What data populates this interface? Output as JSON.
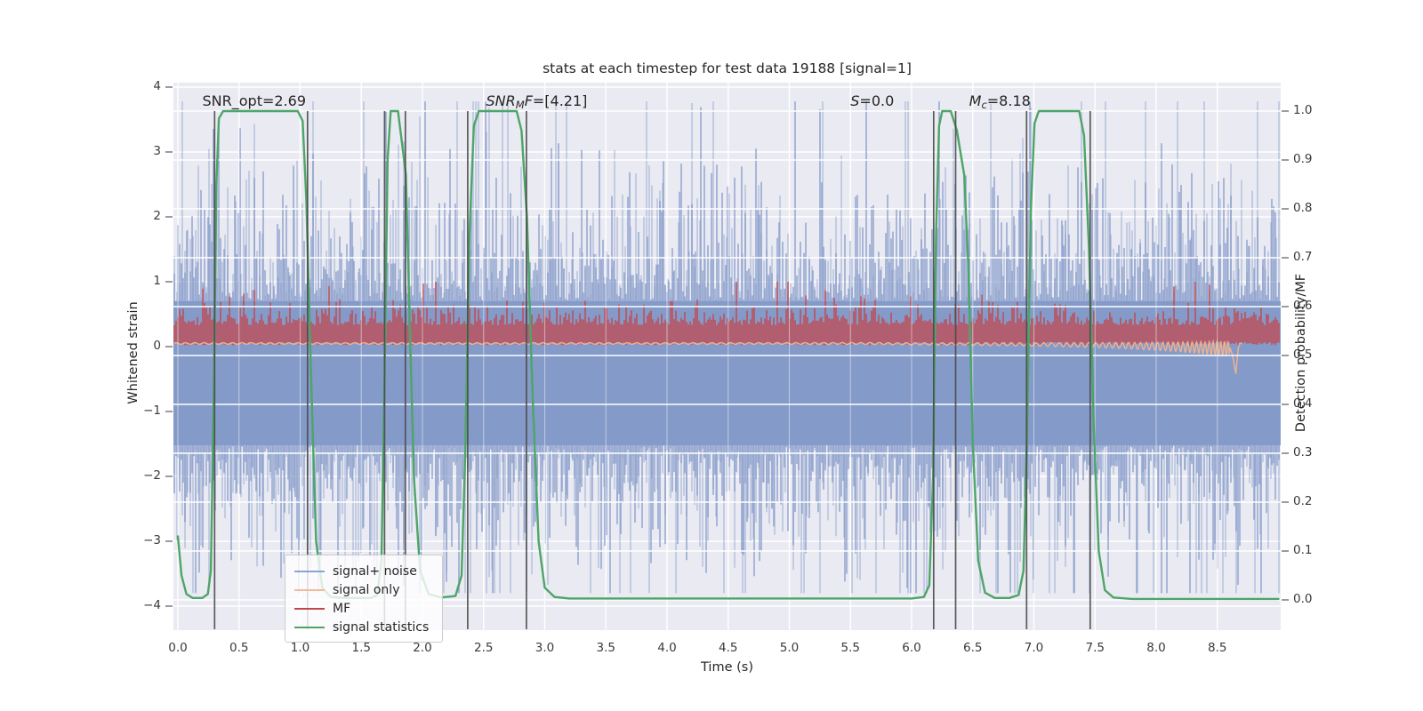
{
  "figure": {
    "title": "stats at each timestep for test data 19188 [signal=1]",
    "background": "#ffffff",
    "axes_background": "#eaeaf2",
    "grid_color": "#ffffff"
  },
  "axes": {
    "x": {
      "label": "Time (s)",
      "tick_labels": [
        "0.0",
        "0.5",
        "1.0",
        "1.5",
        "2.0",
        "2.5",
        "3.0",
        "3.5",
        "4.0",
        "4.5",
        "5.0",
        "5.5",
        "6.0",
        "6.5",
        "7.0",
        "7.5",
        "8.0",
        "8.5"
      ],
      "tick_values": [
        0,
        0.5,
        1,
        1.5,
        2,
        2.5,
        3,
        3.5,
        4,
        4.5,
        5,
        5.5,
        6,
        6.5,
        7,
        7.5,
        8,
        8.5
      ]
    },
    "y_left": {
      "label": "Whitened strain",
      "tick_labels": [
        "4",
        "3",
        "2",
        "1",
        "0",
        "−1",
        "−2",
        "−3",
        "−4"
      ],
      "tick_values": [
        4,
        3,
        2,
        1,
        0,
        -1,
        -2,
        -3,
        -4
      ]
    },
    "y_right": {
      "label": "Detection probability/MF",
      "tick_labels": [
        "1.0",
        "0.9",
        "0.8",
        "0.7",
        "0.6",
        "0.5",
        "0.4",
        "0.3",
        "0.2",
        "0.1",
        "0.0"
      ],
      "tick_values": [
        1.0,
        0.9,
        0.8,
        0.7,
        0.6,
        0.5,
        0.4,
        0.3,
        0.2,
        0.1,
        0.0
      ]
    }
  },
  "legend": {
    "position": "lower left",
    "items": [
      {
        "label": "signal+ noise",
        "color": "#8ba2d2"
      },
      {
        "label": "signal only",
        "color": "#f2bb9b"
      },
      {
        "label": "MF",
        "color": "#c2474d"
      },
      {
        "label": "signal statistics",
        "color": "#51a468"
      }
    ]
  },
  "annotations": [
    {
      "id": "snr-opt",
      "x_time": 0.2,
      "segments": [
        {
          "t": "SNR_opt=2.69"
        }
      ]
    },
    {
      "id": "snr-mf",
      "x_time": 2.52,
      "segments": [
        {
          "t": "SNR",
          "i": true
        },
        {
          "t": "M",
          "i": true,
          "sub": true
        },
        {
          "t": "F",
          "i": true
        },
        {
          "t": "=[4.21]"
        }
      ]
    },
    {
      "id": "s-stat",
      "x_time": 5.5,
      "segments": [
        {
          "t": "S",
          "i": true
        },
        {
          "t": "=0.0"
        }
      ]
    },
    {
      "id": "m-c",
      "x_time": 6.47,
      "segments": [
        {
          "t": "M",
          "i": true
        },
        {
          "t": "c",
          "i": true,
          "sub": true
        },
        {
          "t": "=8.18"
        }
      ]
    }
  ],
  "chart_data": {
    "type": "line",
    "title": "stats at each timestep for test data 19188 [signal=1]",
    "xlabel": "Time (s)",
    "ylabel_left": "Whitened strain",
    "ylabel_right": "Detection probability/MF",
    "xlim": [
      -0.04,
      9.01
    ],
    "ylim_left": [
      -4.37,
      4.07
    ],
    "ylim_right": [
      -0.06,
      1.06
    ],
    "grid": true,
    "series": [
      {
        "name": "signal+ noise",
        "axis": "left",
        "style": "dense-noise",
        "color": "#7e96c6",
        "core_band": [
          -1.52,
          0.7
        ],
        "spike_decay": 0.62,
        "spike_max": 3.78,
        "spike_min": -3.8,
        "seed": 20231
      },
      {
        "name": "signal only",
        "axis": "left",
        "style": "chirp",
        "color": "#f0b290",
        "flat_level": 0.048,
        "ripple_amp": 0.012,
        "growth_tau": 0.8,
        "merger_time": 8.65,
        "merger_depth": -0.42,
        "end_time": 8.7
      },
      {
        "name": "MF",
        "axis": "left",
        "style": "dense-noise",
        "color": "#c2474d",
        "base": 0.02,
        "top_typical": [
          0.33,
          0.68
        ],
        "spike_max": 1.0,
        "seed": 771
      },
      {
        "name": "signal statistics",
        "axis": "right",
        "style": "line",
        "color": "#4da567",
        "points": [
          [
            0,
            0.13
          ],
          [
            0.03,
            0.05
          ],
          [
            0.07,
            0.012
          ],
          [
            0.12,
            0.004
          ],
          [
            0.2,
            0.004
          ],
          [
            0.245,
            0.012
          ],
          [
            0.27,
            0.06
          ],
          [
            0.295,
            0.45
          ],
          [
            0.315,
            0.85
          ],
          [
            0.335,
            0.985
          ],
          [
            0.37,
            1.0
          ],
          [
            0.98,
            1.0
          ],
          [
            1.02,
            0.98
          ],
          [
            1.05,
            0.82
          ],
          [
            1.09,
            0.45
          ],
          [
            1.13,
            0.12
          ],
          [
            1.18,
            0.025
          ],
          [
            1.25,
            0.006
          ],
          [
            1.35,
            0.004
          ],
          [
            1.58,
            0.004
          ],
          [
            1.63,
            0.01
          ],
          [
            1.665,
            0.08
          ],
          [
            1.69,
            0.45
          ],
          [
            1.715,
            0.9
          ],
          [
            1.74,
            1.0
          ],
          [
            1.8,
            1.0
          ],
          [
            1.835,
            0.93
          ],
          [
            1.865,
            0.87
          ],
          [
            1.89,
            0.62
          ],
          [
            1.93,
            0.25
          ],
          [
            1.98,
            0.06
          ],
          [
            2.05,
            0.012
          ],
          [
            2.15,
            0.005
          ],
          [
            2.27,
            0.008
          ],
          [
            2.32,
            0.05
          ],
          [
            2.35,
            0.3
          ],
          [
            2.385,
            0.75
          ],
          [
            2.42,
            0.97
          ],
          [
            2.46,
            1.0
          ],
          [
            2.77,
            1.0
          ],
          [
            2.81,
            0.96
          ],
          [
            2.855,
            0.78
          ],
          [
            2.9,
            0.42
          ],
          [
            2.95,
            0.12
          ],
          [
            3.0,
            0.025
          ],
          [
            3.08,
            0.006
          ],
          [
            3.2,
            0.003
          ],
          [
            6.0,
            0.003
          ],
          [
            6.1,
            0.006
          ],
          [
            6.145,
            0.03
          ],
          [
            6.175,
            0.25
          ],
          [
            6.2,
            0.75
          ],
          [
            6.225,
            0.97
          ],
          [
            6.25,
            1.0
          ],
          [
            6.32,
            1.0
          ],
          [
            6.37,
            0.96
          ],
          [
            6.43,
            0.87
          ],
          [
            6.465,
            0.68
          ],
          [
            6.5,
            0.32
          ],
          [
            6.545,
            0.08
          ],
          [
            6.6,
            0.015
          ],
          [
            6.68,
            0.004
          ],
          [
            6.8,
            0.004
          ],
          [
            6.875,
            0.01
          ],
          [
            6.915,
            0.06
          ],
          [
            6.945,
            0.35
          ],
          [
            6.975,
            0.8
          ],
          [
            7.005,
            0.975
          ],
          [
            7.04,
            1.0
          ],
          [
            7.37,
            1.0
          ],
          [
            7.41,
            0.95
          ],
          [
            7.45,
            0.72
          ],
          [
            7.49,
            0.35
          ],
          [
            7.53,
            0.1
          ],
          [
            7.58,
            0.02
          ],
          [
            7.65,
            0.005
          ],
          [
            7.8,
            0.002
          ],
          [
            9.0,
            0.002
          ]
        ]
      }
    ],
    "vlines": {
      "times": [
        0.3,
        1.06,
        1.69,
        1.86,
        2.37,
        2.85,
        6.18,
        6.36,
        6.94,
        7.46
      ],
      "color": "#4a4a4a",
      "span_right_axis": [
        0.0,
        1.06
      ]
    }
  }
}
